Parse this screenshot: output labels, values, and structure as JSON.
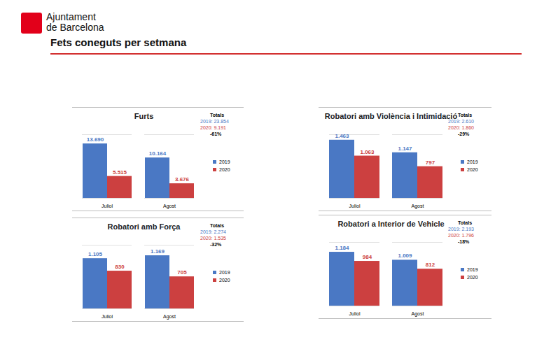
{
  "header": {
    "organization": [
      "Ajuntament",
      "de Barcelona"
    ],
    "title": "Fets coneguts per setmana"
  },
  "chart_data": [
    {
      "type": "bar",
      "title": "Furts",
      "categories": [
        "Juliol",
        "Agost"
      ],
      "series": [
        {
          "name": "2019",
          "color": "#4a78c4",
          "values": [
            13690,
            10164
          ],
          "value_labels": [
            "13.690",
            "10.164"
          ]
        },
        {
          "name": "2020",
          "color": "#cc4040",
          "values": [
            5515,
            3676
          ],
          "value_labels": [
            "5.515",
            "3.676"
          ]
        }
      ],
      "ylim": [
        0,
        16000
      ],
      "yticks": [],
      "tick_labels": "x",
      "data_labels": true,
      "legend": "right",
      "totals": {
        "title": "Totals",
        "entries": [
          {
            "label": "2019:",
            "value": 23854,
            "value_label": "23.854",
            "color": "#4a78c4"
          },
          {
            "label": "2020:",
            "value": 9191,
            "value_label": "9.191",
            "color": "#cc4040"
          }
        ],
        "change": "-61%"
      }
    },
    {
      "type": "bar",
      "title": "Robatori amb Violència i Intimidació",
      "categories": [
        "Juliol",
        "Agost"
      ],
      "series": [
        {
          "name": "2019",
          "color": "#4a78c4",
          "values": [
            1463,
            1147
          ],
          "value_labels": [
            "1.463",
            "1.147"
          ]
        },
        {
          "name": "2020",
          "color": "#cc4040",
          "values": [
            1063,
            797
          ],
          "value_labels": [
            "1.063",
            "797"
          ]
        }
      ],
      "ylim": [
        0,
        1600
      ],
      "yticks": [],
      "tick_labels": "x",
      "data_labels": true,
      "legend": "right",
      "totals": {
        "title": "Totals",
        "entries": [
          {
            "label": "2019:",
            "value": 2610,
            "value_label": "2.610",
            "color": "#4a78c4"
          },
          {
            "label": "2020:",
            "value": 1860,
            "value_label": "1.860",
            "color": "#cc4040"
          }
        ],
        "change": "-29%"
      }
    },
    {
      "type": "bar",
      "title": "Robatori amb Força",
      "categories": [
        "Juliol",
        "Agost"
      ],
      "series": [
        {
          "name": "2019",
          "color": "#4a78c4",
          "values": [
            1105,
            1169
          ],
          "value_labels": [
            "1.105",
            "1.169"
          ]
        },
        {
          "name": "2020",
          "color": "#cc4040",
          "values": [
            830,
            705
          ],
          "value_labels": [
            "830",
            "705"
          ]
        }
      ],
      "ylim": [
        0,
        1400
      ],
      "yticks": [],
      "tick_labels": "x",
      "data_labels": true,
      "legend": "right",
      "totals": {
        "title": "Totals",
        "entries": [
          {
            "label": "2019:",
            "value": 2274,
            "value_label": "2.274",
            "color": "#4a78c4"
          },
          {
            "label": "2020:",
            "value": 1535,
            "value_label": "1.535",
            "color": "#cc4040"
          }
        ],
        "change": "-32%"
      }
    },
    {
      "type": "bar",
      "title": "Robatori a Interior de Vehicle",
      "categories": [
        "Juliol",
        "Agost"
      ],
      "series": [
        {
          "name": "2019",
          "color": "#4a78c4",
          "values": [
            1184,
            1009
          ],
          "value_labels": [
            "1.184",
            "1.009"
          ]
        },
        {
          "name": "2020",
          "color": "#cc4040",
          "values": [
            984,
            812
          ],
          "value_labels": [
            "984",
            "812"
          ]
        }
      ],
      "ylim": [
        0,
        1400
      ],
      "yticks": [],
      "tick_labels": "x",
      "data_labels": true,
      "legend": "right",
      "totals": {
        "title": "Totals",
        "entries": [
          {
            "label": "2019:",
            "value": 2193,
            "value_label": "2.193",
            "color": "#4a78c4"
          },
          {
            "label": "2020:",
            "value": 1796,
            "value_label": "1.796",
            "color": "#cc4040"
          }
        ],
        "change": "-18%"
      }
    }
  ]
}
